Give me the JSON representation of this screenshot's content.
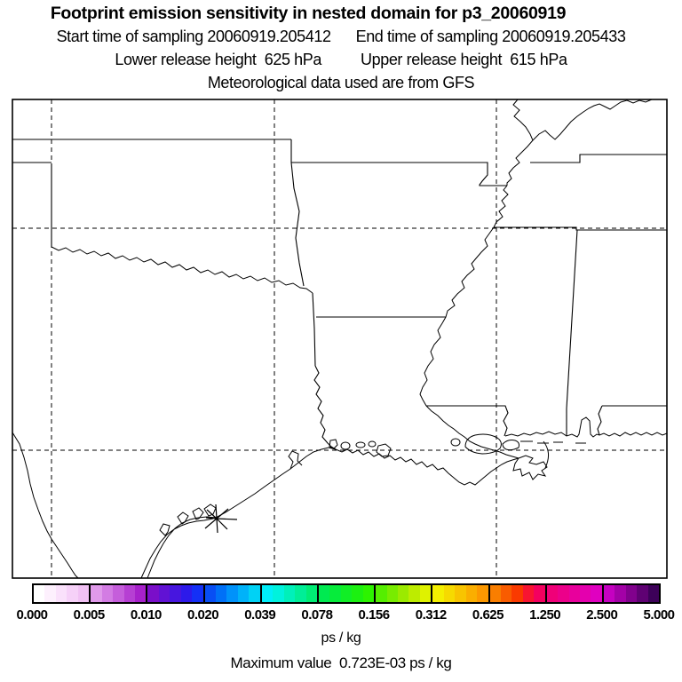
{
  "header": {
    "title": "Footprint emission sensitivity in nested domain for p3_20060919",
    "sampling_start": "Start time of sampling 20060919.205412",
    "sampling_end": "End time of sampling 20060919.205433",
    "lower_release": "Lower release height  625 hPa",
    "upper_release": "Upper release height  615 hPa",
    "met_data": "Meteorological data used are from GFS"
  },
  "colorbar": {
    "unit": "ps / kg",
    "tick_labels": [
      "0.000",
      "0.005",
      "0.010",
      "0.020",
      "0.039",
      "0.078",
      "0.156",
      "0.312",
      "0.625",
      "1.250",
      "2.500",
      "5.000"
    ],
    "segments": [
      [
        "#ffffff",
        "#fdf0fd",
        "#fae1fb",
        "#f6d1f8",
        "#f1c1f4"
      ],
      [
        "#e09aea",
        "#d37ce3",
        "#c55edb",
        "#b63fd3",
        "#a721cb"
      ],
      [
        "#7a0fc9",
        "#6112d4",
        "#4716df",
        "#2d1aea",
        "#1430f6"
      ],
      [
        "#084ef4",
        "#0070f7",
        "#0092fa",
        "#00b2f9",
        "#00d2f5"
      ],
      [
        "#00eef9",
        "#00f2dd",
        "#00f0ba",
        "#00ee97",
        "#00ec74"
      ],
      [
        "#00ea51",
        "#06ec3b",
        "#11ee26",
        "#1cf011",
        "#2df300"
      ],
      [
        "#55ee00",
        "#78ec00",
        "#9bea00",
        "#bdec00",
        "#dff200"
      ],
      [
        "#f4ef00",
        "#f6da00",
        "#f8c400",
        "#faae00",
        "#fc9800"
      ],
      [
        "#f97e00",
        "#f95c00",
        "#fa3a00",
        "#f81531",
        "#f4005f"
      ],
      [
        "#f00078",
        "#ec008a",
        "#e8009c",
        "#e400ae",
        "#e000c0"
      ],
      [
        "#c501c1",
        "#a301a7",
        "#81018d",
        "#5f0173",
        "#3d0159"
      ]
    ]
  },
  "footer": {
    "max_value": "Maximum value  0.723E-03 ps / kg"
  },
  "colors": {
    "background": "#ffffff",
    "line": "#000000"
  },
  "chart_data": {
    "type": "heatmap",
    "title": "Footprint emission sensitivity in nested domain for p3_20060919",
    "units": "ps / kg",
    "colorbar_levels": [
      0.0,
      0.005,
      0.01,
      0.02,
      0.039,
      0.078,
      0.156,
      0.312,
      0.625,
      1.25,
      2.5,
      5.0
    ],
    "max_value": 0.000723,
    "sampling_start": "20060919.205412",
    "sampling_end": "20060919.205433",
    "lower_release_height_hPa": 625,
    "upper_release_height_hPa": 615,
    "met_source": "GFS",
    "map_extent": {
      "lon_min": -100.9,
      "lon_max": -86.2,
      "lat_min": 27.0,
      "lat_max": 37.9
    },
    "gridlines": {
      "lon": [
        -100,
        -95,
        -90
      ],
      "lat": [
        35,
        30
      ]
    },
    "release_marker_approx": {
      "lon": -96.3,
      "lat": 28.5
    },
    "note": "Entire field is below the first contour level (0.005), so the map interior renders white; only coastlines, state borders, rivers, lat/lon gridlines and the release-point asterisk are visible."
  }
}
